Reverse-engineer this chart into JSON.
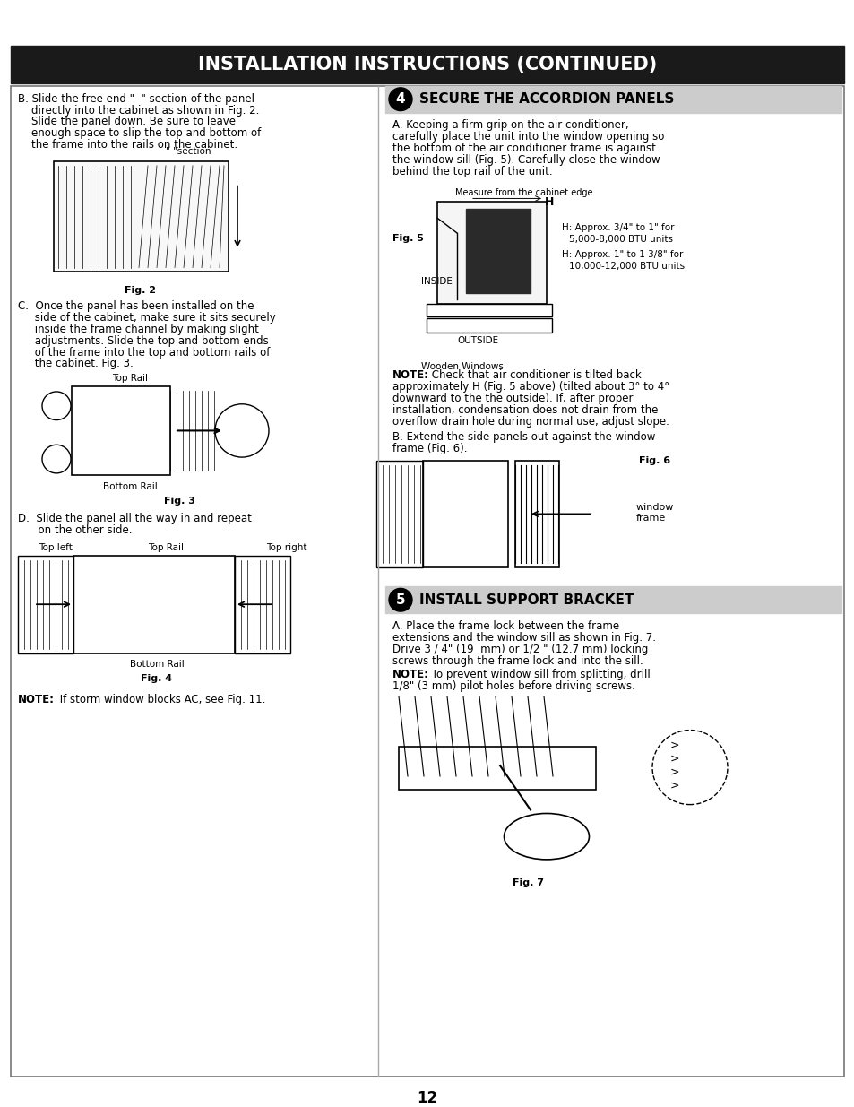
{
  "title": "INSTALLATION INSTRUCTIONS (CONTINUED)",
  "title_bg": "#1a1a1a",
  "title_color": "#ffffff",
  "page_bg": "#ffffff",
  "page_number": "12",
  "section4_num": "4",
  "section4_title": "SECURE THE ACCORDION PANELS",
  "section4_bg": "#cccccc",
  "section4_text_a": "A. Keeping a firm grip on the air conditioner,\ncarefully place the unit into the window opening so\nthe bottom of the air conditioner frame is against\nthe window sill (Fig. 5). Carefully close the window\nbehind the top rail of the unit.",
  "fig5_label": "Fig. 5",
  "fig5_measure": "Measure from the cabinet edge",
  "fig5_inside": "INSIDE",
  "fig5_outside": "OUTSIDE",
  "fig5_wooden": "Wooden Windows",
  "fig5_note1": "H: Approx. 3/4\" to 1\" for",
  "fig5_note2": "5,000-8,000 BTU units",
  "fig5_note3": "H: Approx. 1\" to 1 3/8\" for",
  "fig5_note4": "10,000-12,000 BTU units",
  "note4_bold": "NOTE:",
  "note4_text_line1": " Check that air conditioner is tilted back",
  "note4_text_line2": "approximately H (Fig. 5 above) (tilted about 3° to 4°",
  "note4_text_line3": "downward to the the outside). If, after proper",
  "note4_text_line4": "installation, condensation does not drain from the",
  "note4_text_line5": "overflow drain hole during normal use, adjust slope.",
  "section4_text_b1": "B. Extend the side panels out against the window",
  "section4_text_b2": "frame (Fig. 6).",
  "fig6_label": "Fig. 6",
  "fig6_cap1": "window",
  "fig6_cap2": "frame",
  "section5_num": "5",
  "section5_title": "INSTALL SUPPORT BRACKET",
  "section5_bg": "#cccccc",
  "section5_text_a1": "A. Place the frame lock between the frame",
  "section5_text_a2": "extensions and the window sill as shown in Fig. 7.",
  "section5_text_a3": "Drive 3 / 4\" (19  mm) or 1/2 \" (12.7 mm) locking",
  "section5_text_a4": "screws through the frame lock and into the sill.",
  "note5_bold": "NOTE:",
  "note5_line1": " To prevent window sill from splitting, drill",
  "note5_line2": "1/8\" (3 mm) pilot holes before driving screws.",
  "fig7_label": "Fig. 7",
  "left_b_lines": [
    "B. Slide the free end \"  \" section of the panel",
    "    directly into the cabinet as shown in Fig. 2.",
    "    Slide the panel down. Be sure to leave",
    "    enough space to slip the top and bottom of",
    "    the frame into the rails on the cabinet."
  ],
  "fig2_caption": "\" \"section",
  "fig2_label": "Fig. 2",
  "left_c_lines": [
    "C.  Once the panel has been installed on the",
    "     side of the cabinet, make sure it sits securely",
    "     inside the frame channel by making slight",
    "     adjustments. Slide the top and bottom ends",
    "     of the frame into the top and bottom rails of",
    "     the cabinet. Fig. 3."
  ],
  "fig3_label": "Fig. 3",
  "fig3_top_rail": "Top Rail",
  "fig3_bottom_rail": "Bottom Rail",
  "left_d_lines": [
    "D.  Slide the panel all the way in and repeat",
    "      on the other side."
  ],
  "fig4_label": "Fig. 4",
  "fig4_top_left": "Top left",
  "fig4_top_rail": "Top Rail",
  "fig4_top_right": "Top right",
  "fig4_bottom_rail": "Bottom Rail",
  "left_note_bold": "NOTE:",
  "left_note_rest": " If storm window blocks AC, see Fig. 11."
}
